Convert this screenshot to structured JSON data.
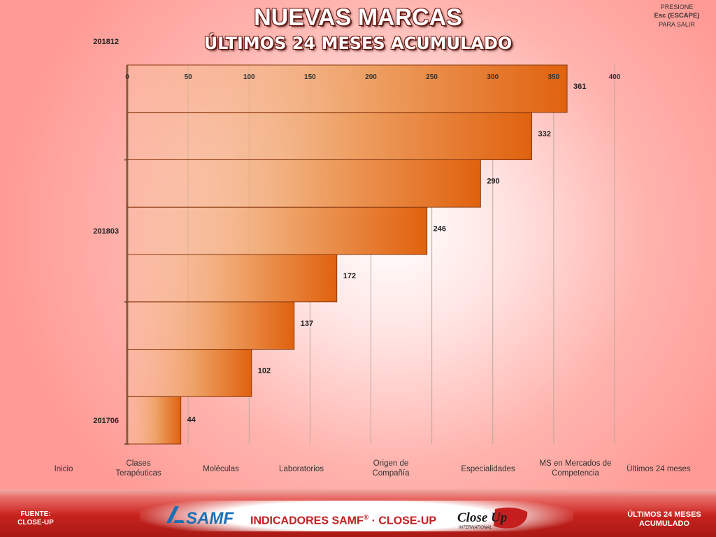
{
  "header": {
    "title": "NUEVAS MARCAS",
    "subtitle": "ÚLTIMOS 24 MESES ACUMULADO",
    "exit_hint": {
      "line1": "PRESIONE",
      "line2": "Esc (ESCAPE)",
      "line3": "PARA SALIR"
    }
  },
  "chart_data": {
    "type": "bar",
    "orientation": "horizontal",
    "categories": [
      "201706",
      "",
      "",
      "201803",
      "",
      "",
      "",
      "201812"
    ],
    "category_ticks_labeled": [
      "201706",
      "201803",
      "201812"
    ],
    "values": [
      44,
      102,
      137,
      172,
      246,
      290,
      332,
      361
    ],
    "xlim": [
      0,
      400
    ],
    "xticks": [
      0,
      50,
      100,
      150,
      200,
      250,
      300,
      350,
      400
    ],
    "grid": true,
    "axis_position": "top",
    "bar_color": "#e0620e",
    "title": "",
    "xlabel": "",
    "ylabel": ""
  },
  "nav": {
    "items": [
      {
        "label": "Inicio"
      },
      {
        "label": "Clases Terapéuticas"
      },
      {
        "label": "Moléculas"
      },
      {
        "label": "Laboratorios"
      },
      {
        "label": "Origen de Compañía"
      },
      {
        "label": "Especialidades"
      },
      {
        "label": "MS en Mercados de Competencia"
      },
      {
        "label": "Últimos 24 meses"
      }
    ]
  },
  "footer": {
    "source_label": "FUENTE:",
    "source_name": "CLOSE-UP",
    "samf_logo_text": "SAMF",
    "indicators_text": "INDICADORES SAMF",
    "registered": "®",
    "indicators_suffix": " · CLOSE-UP",
    "closeup_logo_text": "Close Up",
    "closeup_logo_sub": "INTERNATIONAL",
    "right_line1": "ÚLTIMOS 24 MESES",
    "right_line2": "ACUMULADO"
  },
  "colors": {
    "accent": "#c41e1e",
    "bar": "#e0620e",
    "footer": "#c8221d"
  }
}
